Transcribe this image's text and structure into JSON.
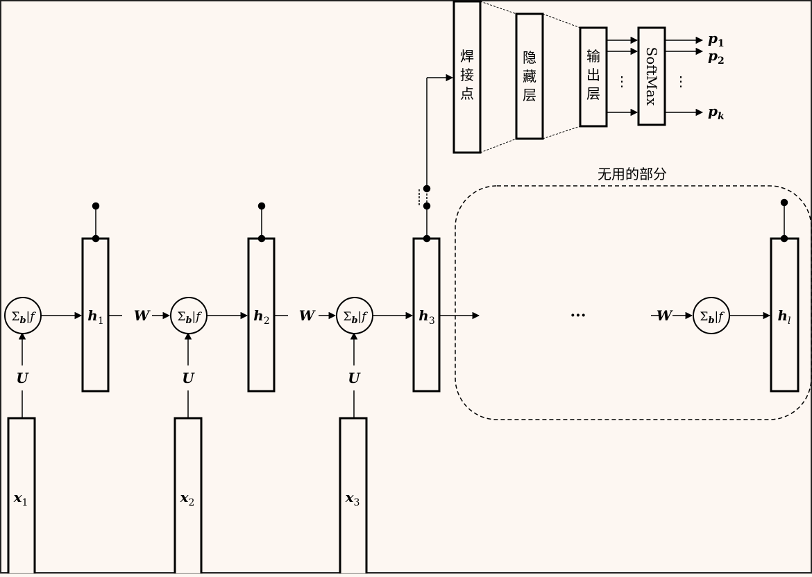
{
  "diagram": {
    "inputs": [
      {
        "base": "x",
        "sub": "1"
      },
      {
        "base": "x",
        "sub": "2"
      },
      {
        "base": "x",
        "sub": "3"
      }
    ],
    "hidden": [
      {
        "base": "h",
        "sub": "1"
      },
      {
        "base": "h",
        "sub": "2"
      },
      {
        "base": "h",
        "sub": "3"
      },
      {
        "base": "h",
        "sub": "l"
      }
    ],
    "node_label": {
      "sigma": "Σ",
      "b": "b",
      "rest": "|f"
    },
    "input_weight": "U",
    "recurrent_weight": "W",
    "ellipsis": "···",
    "unused_label": "无用的部分",
    "weld_layer": [
      "焊",
      "接",
      "点"
    ],
    "hidden_layer": [
      "隐",
      "藏",
      "层"
    ],
    "output_layer": [
      "输",
      "出",
      "层"
    ],
    "softmax_label": "SoftMax",
    "vertical_dots": "⋮",
    "outputs": [
      {
        "base": "p",
        "sub": "1"
      },
      {
        "base": "p",
        "sub": "2"
      },
      {
        "base": "p",
        "sub": "k"
      }
    ]
  }
}
